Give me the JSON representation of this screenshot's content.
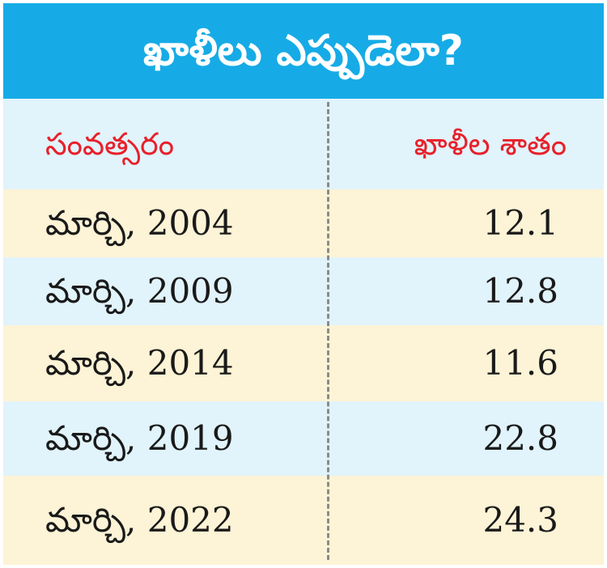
{
  "title": "ఖాళీలు ఎప్పుడెలా?",
  "chart_data": {
    "type": "table",
    "columns": [
      "సంవత్సరం",
      "ఖాళీల శాతం"
    ],
    "rows": [
      {
        "year": "మార్చి, 2004",
        "value": "12.1"
      },
      {
        "year": "మార్చి, 2009",
        "value": "12.8"
      },
      {
        "year": "మార్చి, 2014",
        "value": "11.6"
      },
      {
        "year": "మార్చి, 2019",
        "value": "22.8"
      },
      {
        "year": "మార్చి, 2022",
        "value": "24.3"
      }
    ]
  },
  "colors": {
    "title_background": "#16abe6",
    "header_text": "#e8202a",
    "row_blue": "#e1f3fb",
    "row_cream": "#fdf3d6"
  }
}
